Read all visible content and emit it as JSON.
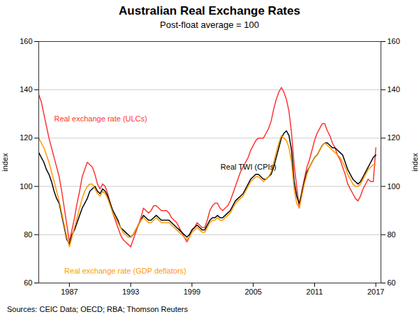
{
  "chart_data": {
    "type": "line",
    "title": "Australian Real Exchange Rates",
    "subtitle": "Post-float average = 100",
    "source": "Sources: CEIC Data; OECD; RBA; Thomson Reuters",
    "ylabel": "index",
    "y2label": "index",
    "xlim": [
      1984.0,
      2017.5
    ],
    "xticks": [
      1987,
      1993,
      1999,
      2005,
      2011,
      2017
    ],
    "ylim": [
      60,
      160
    ],
    "yticks": [
      60,
      80,
      100,
      120,
      140,
      160
    ],
    "y2lim": [
      60,
      160
    ],
    "y2ticks": [
      60,
      80,
      100,
      120,
      140,
      160
    ],
    "grid": true,
    "x": [
      1984.0,
      1984.25,
      1984.5,
      1984.75,
      1985.0,
      1985.25,
      1985.5,
      1985.75,
      1986.0,
      1986.25,
      1986.5,
      1986.75,
      1987.0,
      1987.25,
      1987.5,
      1987.75,
      1988.0,
      1988.25,
      1988.5,
      1988.75,
      1989.0,
      1989.25,
      1989.5,
      1989.75,
      1990.0,
      1990.25,
      1990.5,
      1990.75,
      1991.0,
      1991.25,
      1991.5,
      1991.75,
      1992.0,
      1992.25,
      1992.5,
      1992.75,
      1993.0,
      1993.25,
      1993.5,
      1993.75,
      1994.0,
      1994.25,
      1994.5,
      1994.75,
      1995.0,
      1995.25,
      1995.5,
      1995.75,
      1996.0,
      1996.25,
      1996.5,
      1996.75,
      1997.0,
      1997.25,
      1997.5,
      1997.75,
      1998.0,
      1998.25,
      1998.5,
      1998.75,
      1999.0,
      1999.25,
      1999.5,
      1999.75,
      2000.0,
      2000.25,
      2000.5,
      2000.75,
      2001.0,
      2001.25,
      2001.5,
      2001.75,
      2002.0,
      2002.25,
      2002.5,
      2002.75,
      2003.0,
      2003.25,
      2003.5,
      2003.75,
      2004.0,
      2004.25,
      2004.5,
      2004.75,
      2005.0,
      2005.25,
      2005.5,
      2005.75,
      2006.0,
      2006.25,
      2006.5,
      2006.75,
      2007.0,
      2007.25,
      2007.5,
      2007.75,
      2008.0,
      2008.25,
      2008.5,
      2008.75,
      2009.0,
      2009.25,
      2009.5,
      2009.75,
      2010.0,
      2010.25,
      2010.5,
      2010.75,
      2011.0,
      2011.25,
      2011.5,
      2011.75,
      2012.0,
      2012.25,
      2012.5,
      2012.75,
      2013.0,
      2013.25,
      2013.5,
      2013.75,
      2014.0,
      2014.25,
      2014.5,
      2014.75,
      2015.0,
      2015.25,
      2015.5,
      2015.75,
      2016.0,
      2016.25,
      2016.5,
      2016.75,
      2017.0
    ],
    "series": [
      {
        "name": "Real exchange rate (ULCs)",
        "color": "#ff3333",
        "values": [
          138,
          135,
          130,
          125,
          120,
          116,
          112,
          108,
          104,
          98,
          91,
          84,
          77,
          82,
          87,
          93,
          98,
          104,
          107,
          110,
          109,
          108,
          105,
          101,
          99,
          101,
          100,
          97,
          93,
          89,
          86,
          83,
          80,
          78,
          77,
          76,
          75,
          78,
          81,
          84,
          87,
          91,
          90,
          89,
          90,
          92,
          92,
          91,
          90,
          90,
          90,
          89,
          87,
          86,
          85,
          83,
          81,
          79,
          77,
          79,
          82,
          83,
          85,
          84,
          83,
          83,
          86,
          90,
          92,
          93,
          93,
          91,
          90,
          91,
          92,
          94,
          97,
          100,
          103,
          106,
          108,
          110,
          112,
          115,
          117,
          119,
          120,
          120,
          120,
          122,
          124,
          127,
          132,
          136,
          139,
          141,
          139,
          136,
          131,
          122,
          109,
          100,
          91,
          98,
          103,
          108,
          111,
          115,
          119,
          122,
          124,
          126,
          126,
          123,
          121,
          118,
          116,
          113,
          111,
          108,
          105,
          101,
          99,
          97,
          95,
          94,
          96,
          99,
          101,
          103,
          102,
          102,
          116
        ]
      },
      {
        "name": "Real TWI (CPIs)",
        "color": "#000000",
        "values": [
          114,
          112,
          110,
          107,
          105,
          102,
          98,
          95,
          93,
          88,
          83,
          78,
          76,
          80,
          82,
          85,
          88,
          91,
          93,
          95,
          98,
          99,
          100,
          98,
          97,
          99,
          98,
          96,
          93,
          90,
          88,
          86,
          83,
          82,
          81,
          80,
          79,
          80,
          82,
          84,
          86,
          88,
          87,
          86,
          86,
          87,
          88,
          87,
          86,
          86,
          86,
          86,
          85,
          84,
          83,
          82,
          81,
          80,
          79,
          80,
          82,
          83,
          84,
          83,
          82,
          82,
          84,
          86,
          87,
          87,
          88,
          87,
          87,
          88,
          89,
          90,
          92,
          94,
          95,
          96,
          97,
          99,
          101,
          103,
          104,
          105,
          105,
          104,
          103,
          103,
          104,
          105,
          108,
          112,
          116,
          120,
          122,
          123,
          121,
          115,
          102,
          96,
          93,
          97,
          102,
          106,
          108,
          110,
          112,
          113,
          115,
          117,
          118,
          118,
          117,
          116,
          116,
          115,
          114,
          113,
          110,
          107,
          105,
          103,
          102,
          101,
          102,
          104,
          106,
          108,
          110,
          112,
          113
        ]
      },
      {
        "name": "Real exchange rate (GDP deflators)",
        "color": "#ff9900",
        "values": [
          120,
          118,
          116,
          113,
          110,
          106,
          102,
          98,
          94,
          89,
          84,
          79,
          75,
          79,
          83,
          87,
          91,
          95,
          98,
          100,
          101,
          101,
          99,
          97,
          96,
          98,
          97,
          95,
          92,
          89,
          87,
          85,
          83,
          81,
          80,
          79,
          79,
          80,
          82,
          84,
          86,
          87,
          86,
          85,
          85,
          86,
          87,
          86,
          85,
          85,
          85,
          85,
          84,
          83,
          82,
          81,
          80,
          79,
          78,
          79,
          81,
          82,
          83,
          82,
          81,
          81,
          83,
          85,
          86,
          86,
          87,
          86,
          86,
          87,
          88,
          89,
          91,
          93,
          94,
          95,
          96,
          98,
          100,
          102,
          103,
          104,
          104,
          103,
          102,
          103,
          104,
          106,
          110,
          114,
          118,
          121,
          120,
          119,
          116,
          110,
          99,
          93,
          91,
          96,
          101,
          105,
          108,
          110,
          112,
          113,
          115,
          117,
          118,
          117,
          116,
          115,
          114,
          113,
          112,
          110,
          108,
          105,
          103,
          101,
          100,
          100,
          101,
          103,
          105,
          107,
          108,
          109,
          109
        ]
      }
    ],
    "annotations": [
      {
        "text": "Real exchange rate (ULCs)",
        "x": 1985.5,
        "y": 127,
        "color": "#ff3333"
      },
      {
        "text": "Real TWI (CPIs)",
        "x": 2001.8,
        "y": 107,
        "color": "#000000"
      },
      {
        "text": "Real exchange rate (GDP deflators)",
        "x": 1986.5,
        "y": 64,
        "color": "#ff9900"
      }
    ]
  }
}
